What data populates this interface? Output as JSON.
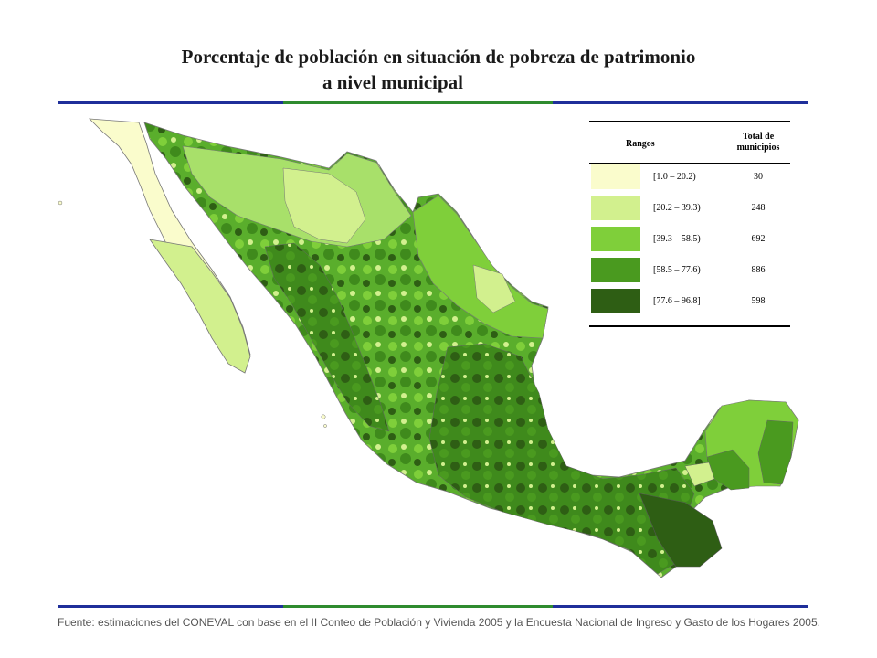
{
  "title": {
    "line1": "Porcentaje de población en situación de pobreza de patrimonio",
    "line2": "a nivel municipal"
  },
  "legend": {
    "header_ranges": "Rangos",
    "header_total_line1": "Total de",
    "header_total_line2": "municipios",
    "items": [
      {
        "range": "[1.0 – 20.2)",
        "count": "30",
        "color": "#fafccc"
      },
      {
        "range": "[20.2 – 39.3)",
        "count": "248",
        "color": "#d2f08e"
      },
      {
        "range": "[39.3 – 58.5)",
        "count": "692",
        "color": "#7fcf3a"
      },
      {
        "range": "[58.5 – 77.6)",
        "count": "886",
        "color": "#4a9a1f"
      },
      {
        "range": "[77.6 – 96.8]",
        "count": "598",
        "color": "#2e5e14"
      }
    ]
  },
  "source": "Fuente: estimaciones del CONEVAL con base en el II Conteo de Población y Vivienda 2005 y la Encuesta Nacional de Ingreso y Gasto de los Hogares 2005.",
  "colors": {
    "rule_blue": "#1f2f9a",
    "rule_green": "#2e8b2e"
  }
}
